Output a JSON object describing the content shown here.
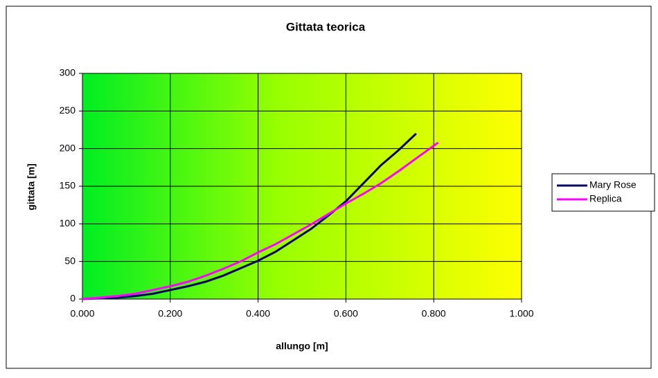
{
  "chart_data": {
    "type": "line",
    "title": "Gittata teorica",
    "x_label": "allungo [m]",
    "y_label": "gittata [m]",
    "xlim": [
      0,
      1
    ],
    "ylim": [
      0,
      300
    ],
    "xticks": [
      {
        "value": 0,
        "label": "0.000"
      },
      {
        "value": 0.2,
        "label": "0.200"
      },
      {
        "value": 0.4,
        "label": "0.400"
      },
      {
        "value": 0.6,
        "label": "0.600"
      },
      {
        "value": 0.8,
        "label": "0.800"
      },
      {
        "value": 1,
        "label": "1.000"
      }
    ],
    "yticks": [
      0,
      50,
      100,
      150,
      200,
      250,
      300
    ],
    "grid": true,
    "legend": "right",
    "series": [
      {
        "name": "Mary Rose",
        "color": "#000066",
        "x": [
          0,
          0.04,
          0.08,
          0.12,
          0.16,
          0.2,
          0.24,
          0.28,
          0.32,
          0.36,
          0.4,
          0.44,
          0.48,
          0.52,
          0.56,
          0.6,
          0.64,
          0.68,
          0.72,
          0.76
        ],
        "values": [
          0,
          1,
          2,
          4,
          7,
          12,
          17,
          23,
          31,
          41,
          51,
          63,
          78,
          93,
          111,
          130,
          154,
          178,
          198,
          220
        ]
      },
      {
        "name": "Replica",
        "color": "#ff00ff",
        "x": [
          0,
          0.04,
          0.08,
          0.12,
          0.16,
          0.2,
          0.24,
          0.28,
          0.32,
          0.36,
          0.4,
          0.44,
          0.48,
          0.52,
          0.56,
          0.6,
          0.64,
          0.68,
          0.72,
          0.76,
          0.81
        ],
        "values": [
          0,
          2,
          4,
          7,
          12,
          17,
          23,
          31,
          40,
          50,
          62,
          73,
          86,
          99,
          113,
          127,
          140,
          154,
          170,
          187,
          208
        ]
      }
    ]
  }
}
